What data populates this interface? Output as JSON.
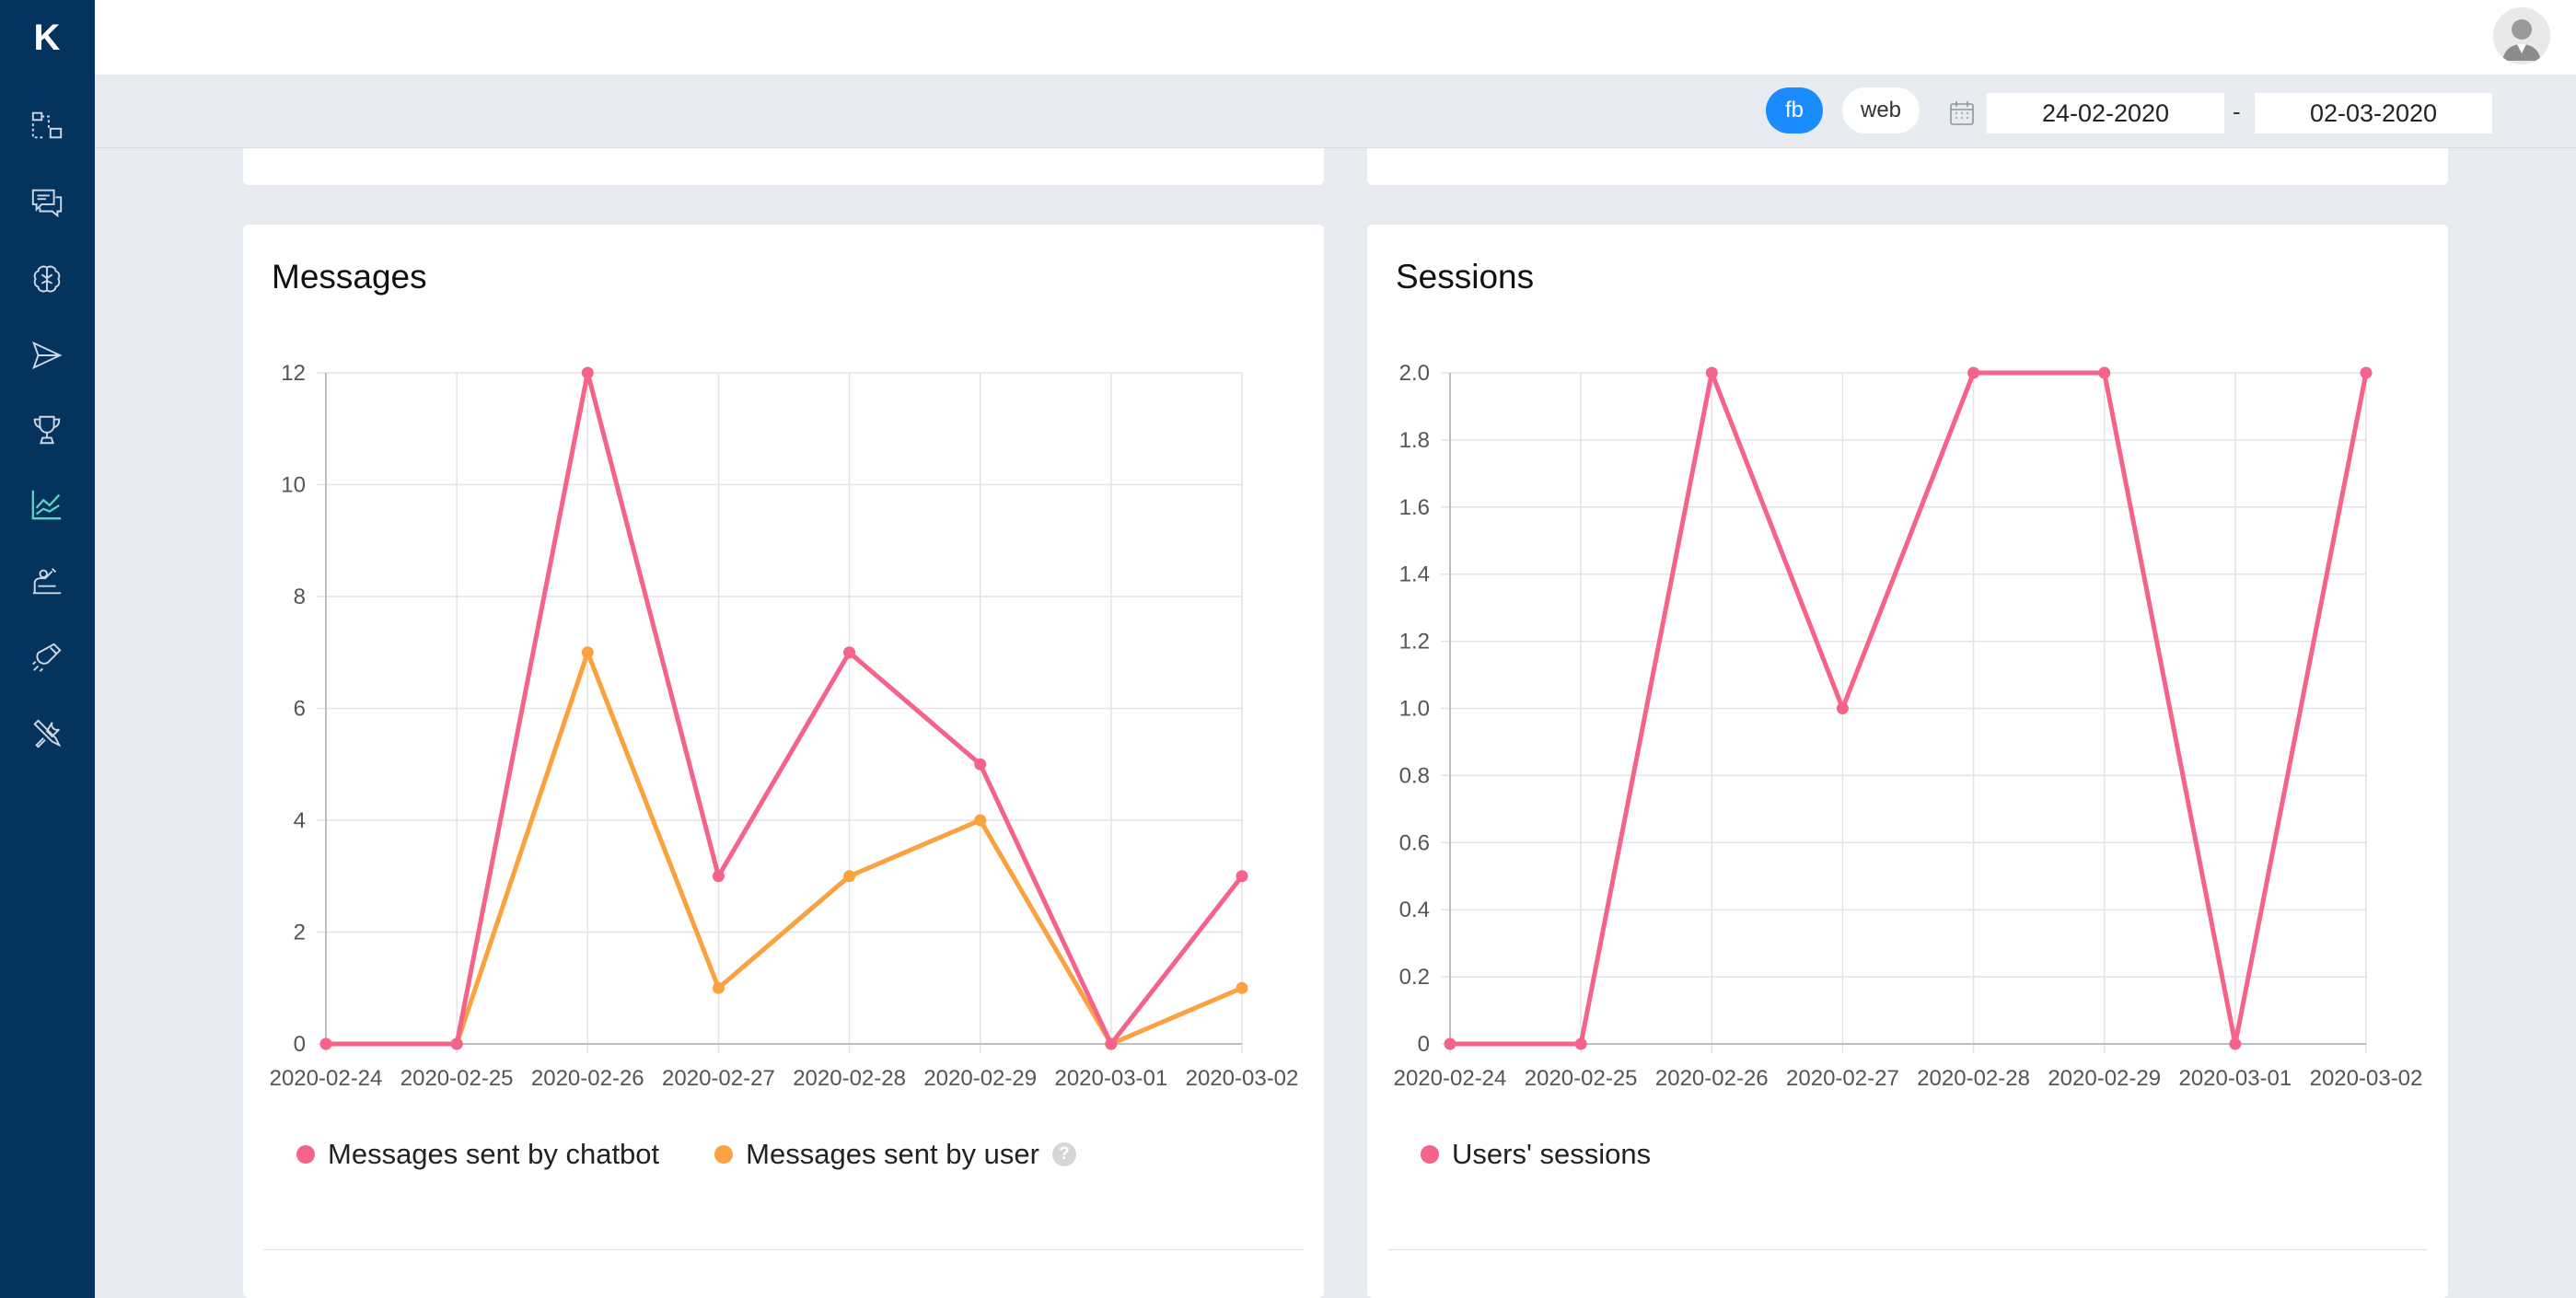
{
  "app": {
    "logo_letter": "K"
  },
  "sidebar": {
    "items": [
      {
        "icon": "flow-icon",
        "active": false
      },
      {
        "icon": "chat-icon",
        "active": false
      },
      {
        "icon": "brain-icon",
        "active": false
      },
      {
        "icon": "send-icon",
        "active": false
      },
      {
        "icon": "trophy-icon",
        "active": false
      },
      {
        "icon": "analytics-icon",
        "active": true
      },
      {
        "icon": "teacher-icon",
        "active": false
      },
      {
        "icon": "magnet-icon",
        "active": false
      },
      {
        "icon": "tools-icon",
        "active": false
      }
    ]
  },
  "filters": {
    "channels": [
      "fb",
      "web"
    ],
    "selected_channel": "fb",
    "date_from": "24-02-2020",
    "date_separator": "-",
    "date_to": "02-03-2020"
  },
  "colors": {
    "pink": "#f5628a",
    "orange": "#f9a23f",
    "sidebar": "#04335d",
    "accent": "#1a8cff"
  },
  "messages_card": {
    "title": "Messages",
    "legend_chatbot": "Messages sent by chatbot",
    "legend_user": "Messages sent by user",
    "help": "?"
  },
  "sessions_card": {
    "title": "Sessions",
    "legend_sessions": "Users' sessions"
  },
  "chart_data": [
    {
      "type": "line",
      "title": "Messages",
      "categories": [
        "2020-02-24",
        "2020-02-25",
        "2020-02-26",
        "2020-02-27",
        "2020-02-28",
        "2020-02-29",
        "2020-03-01",
        "2020-03-02"
      ],
      "yticks": [
        0,
        2,
        4,
        6,
        8,
        10,
        12
      ],
      "ylim": [
        0,
        12
      ],
      "series": [
        {
          "name": "Messages sent by chatbot",
          "color": "#f5628a",
          "values": [
            0,
            0,
            12,
            3,
            7,
            5,
            0,
            3
          ]
        },
        {
          "name": "Messages sent by user",
          "color": "#f9a23f",
          "values": [
            0,
            0,
            7,
            1,
            3,
            4,
            0,
            1
          ]
        }
      ]
    },
    {
      "type": "line",
      "title": "Sessions",
      "categories": [
        "2020-02-24",
        "2020-02-25",
        "2020-02-26",
        "2020-02-27",
        "2020-02-28",
        "2020-02-29",
        "2020-03-01",
        "2020-03-02"
      ],
      "yticks": [
        0,
        0.2,
        0.4,
        0.6,
        0.8,
        1.0,
        1.2,
        1.4,
        1.6,
        1.8,
        2.0
      ],
      "yticklabels": [
        "0",
        "0.2",
        "0.4",
        "0.6",
        "0.8",
        "1.0",
        "1.2",
        "1.4",
        "1.6",
        "1.8",
        "2.0"
      ],
      "ylim": [
        0,
        2
      ],
      "series": [
        {
          "name": "Users' sessions",
          "color": "#f5628a",
          "values": [
            0,
            0,
            2,
            1,
            2,
            2,
            0,
            2
          ]
        }
      ]
    }
  ]
}
